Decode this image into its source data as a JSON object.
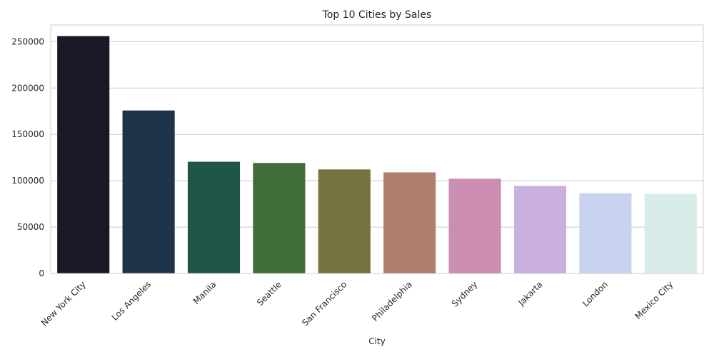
{
  "chart_data": {
    "type": "bar",
    "title": "Top 10 Cities by Sales",
    "xlabel": "City",
    "ylabel": "",
    "categories": [
      "New York City",
      "Los Angeles",
      "Manila",
      "Seattle",
      "San Francisco",
      "Philadelphia",
      "Sydney",
      "Jakarta",
      "London",
      "Mexico City"
    ],
    "values": [
      256000,
      175800,
      120500,
      119200,
      112200,
      109000,
      102200,
      94500,
      86500,
      85800
    ],
    "colors": [
      "#1b1727",
      "#1f344b",
      "#20554a",
      "#416e38",
      "#737340",
      "#ae7e6f",
      "#cb8db2",
      "#cab0e1",
      "#c8d4ef",
      "#d8ece9"
    ],
    "ylim": [
      0,
      268000
    ],
    "yticks": [
      0,
      50000,
      100000,
      150000,
      200000,
      250000
    ],
    "grid": "horizontal",
    "legend": "none"
  }
}
